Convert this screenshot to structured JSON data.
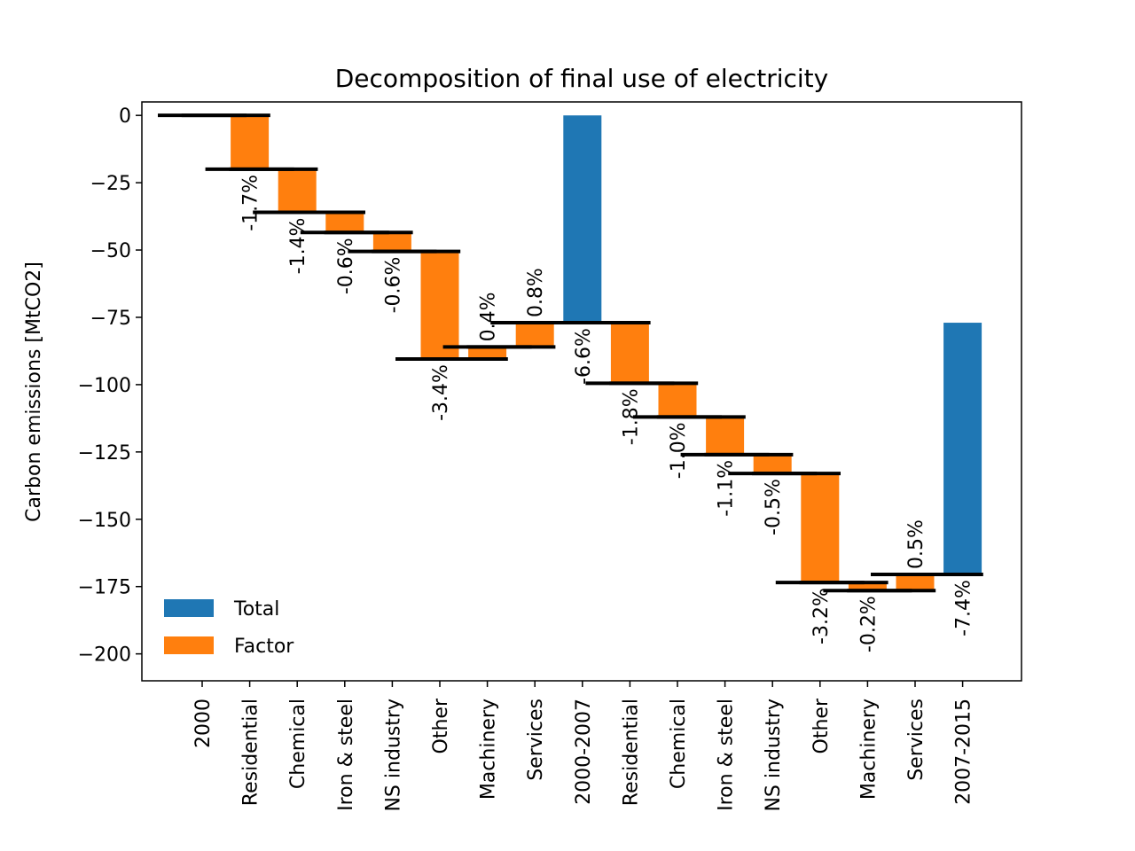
{
  "chart_data": {
    "type": "bar",
    "subtype": "waterfall",
    "title": "Decomposition of final use of electricity",
    "xlabel": "",
    "ylabel": "Carbon emissions [MtCO2]",
    "ylim": [
      -210,
      5
    ],
    "yticks": [
      0,
      -25,
      -50,
      -75,
      -100,
      -125,
      -150,
      -175,
      -200
    ],
    "ytick_labels": [
      "0",
      "−25",
      "−50",
      "−75",
      "−100",
      "−125",
      "−150",
      "−175",
      "−200"
    ],
    "grid": false,
    "legend": {
      "position": "lower-left",
      "entries": [
        {
          "name": "Total",
          "color": "#1f77b4"
        },
        {
          "name": "Factor",
          "color": "#ff7f0e"
        }
      ]
    },
    "colors": {
      "total": "#1f77b4",
      "factor": "#ff7f0e",
      "level_line": "#000000"
    },
    "categories": [
      "2000",
      "Residential",
      "Chemical",
      "Iron & steel",
      "NS industry",
      "Other",
      "Machinery",
      "Services",
      "2000-2007",
      "Residential",
      "Chemical",
      "Iron & steel",
      "NS industry",
      "Other",
      "Machinery",
      "Services",
      "2007-2015"
    ],
    "bars": [
      {
        "kind": "start",
        "start": 0,
        "end": 0,
        "label": ""
      },
      {
        "kind": "factor",
        "start": 0,
        "end": -20,
        "label": "-1.7%"
      },
      {
        "kind": "factor",
        "start": -20,
        "end": -36,
        "label": "-1.4%"
      },
      {
        "kind": "factor",
        "start": -36,
        "end": -43.5,
        "label": "-0.6%"
      },
      {
        "kind": "factor",
        "start": -43.5,
        "end": -50.5,
        "label": "-0.6%"
      },
      {
        "kind": "factor",
        "start": -50.5,
        "end": -90.5,
        "label": "-3.4%"
      },
      {
        "kind": "factor",
        "start": -90.5,
        "end": -86,
        "label": "0.4%"
      },
      {
        "kind": "factor",
        "start": -86,
        "end": -77,
        "label": "0.8%"
      },
      {
        "kind": "total",
        "start": 0,
        "end": -77,
        "label": "-6.6%"
      },
      {
        "kind": "factor",
        "start": -77,
        "end": -99.5,
        "label": "-1.8%"
      },
      {
        "kind": "factor",
        "start": -99.5,
        "end": -112,
        "label": "-1.0%"
      },
      {
        "kind": "factor",
        "start": -112,
        "end": -126,
        "label": "-1.1%"
      },
      {
        "kind": "factor",
        "start": -126,
        "end": -133,
        "label": "-0.5%"
      },
      {
        "kind": "factor",
        "start": -133,
        "end": -173.5,
        "label": "-3.2%"
      },
      {
        "kind": "factor",
        "start": -173.5,
        "end": -176.5,
        "label": "-0.2%"
      },
      {
        "kind": "factor",
        "start": -176.5,
        "end": -170.5,
        "label": "0.5%"
      },
      {
        "kind": "total",
        "start": -77,
        "end": -170.5,
        "label": "-7.4%"
      }
    ]
  }
}
